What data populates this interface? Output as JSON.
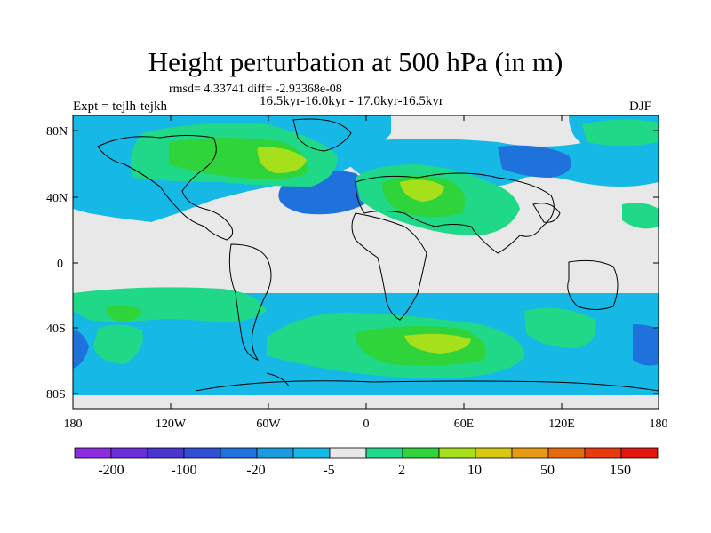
{
  "title": "Height perturbation at 500 hPa (in m)",
  "stats": "rmsd= 4.33741 diff= -2.93368e-08",
  "periods": "16.5kyr-16.0kyr - 17.0kyr-16.5kyr",
  "experiment": "Expt = tejlh-tejkh",
  "season": "DJF",
  "lat_ticks": [
    "80N",
    "40N",
    "0",
    "40S",
    "80S"
  ],
  "lon_ticks": [
    "180",
    "120W",
    "60W",
    "0",
    "60E",
    "120E",
    "180"
  ],
  "colorbar": {
    "colors": [
      "#8b2be2",
      "#6a2fdc",
      "#4a35d0",
      "#2f4fd6",
      "#1f72dc",
      "#1a9be0",
      "#16b9e6",
      "#e8e8e8",
      "#1fd888",
      "#2fd33a",
      "#a6e01a",
      "#d8c812",
      "#e89a10",
      "#e66a0c",
      "#e83a0c",
      "#e4150a"
    ],
    "labels": [
      "-200",
      "-100",
      "-20",
      "-5",
      "2",
      "10",
      "50",
      "150"
    ]
  },
  "colors": {
    "light_blue": "#16b9e6",
    "blue": "#1f72dc",
    "teal_green": "#1fd888",
    "green": "#2fd33a",
    "yellow_green": "#a6e01a",
    "background": "#e8e8e8"
  }
}
